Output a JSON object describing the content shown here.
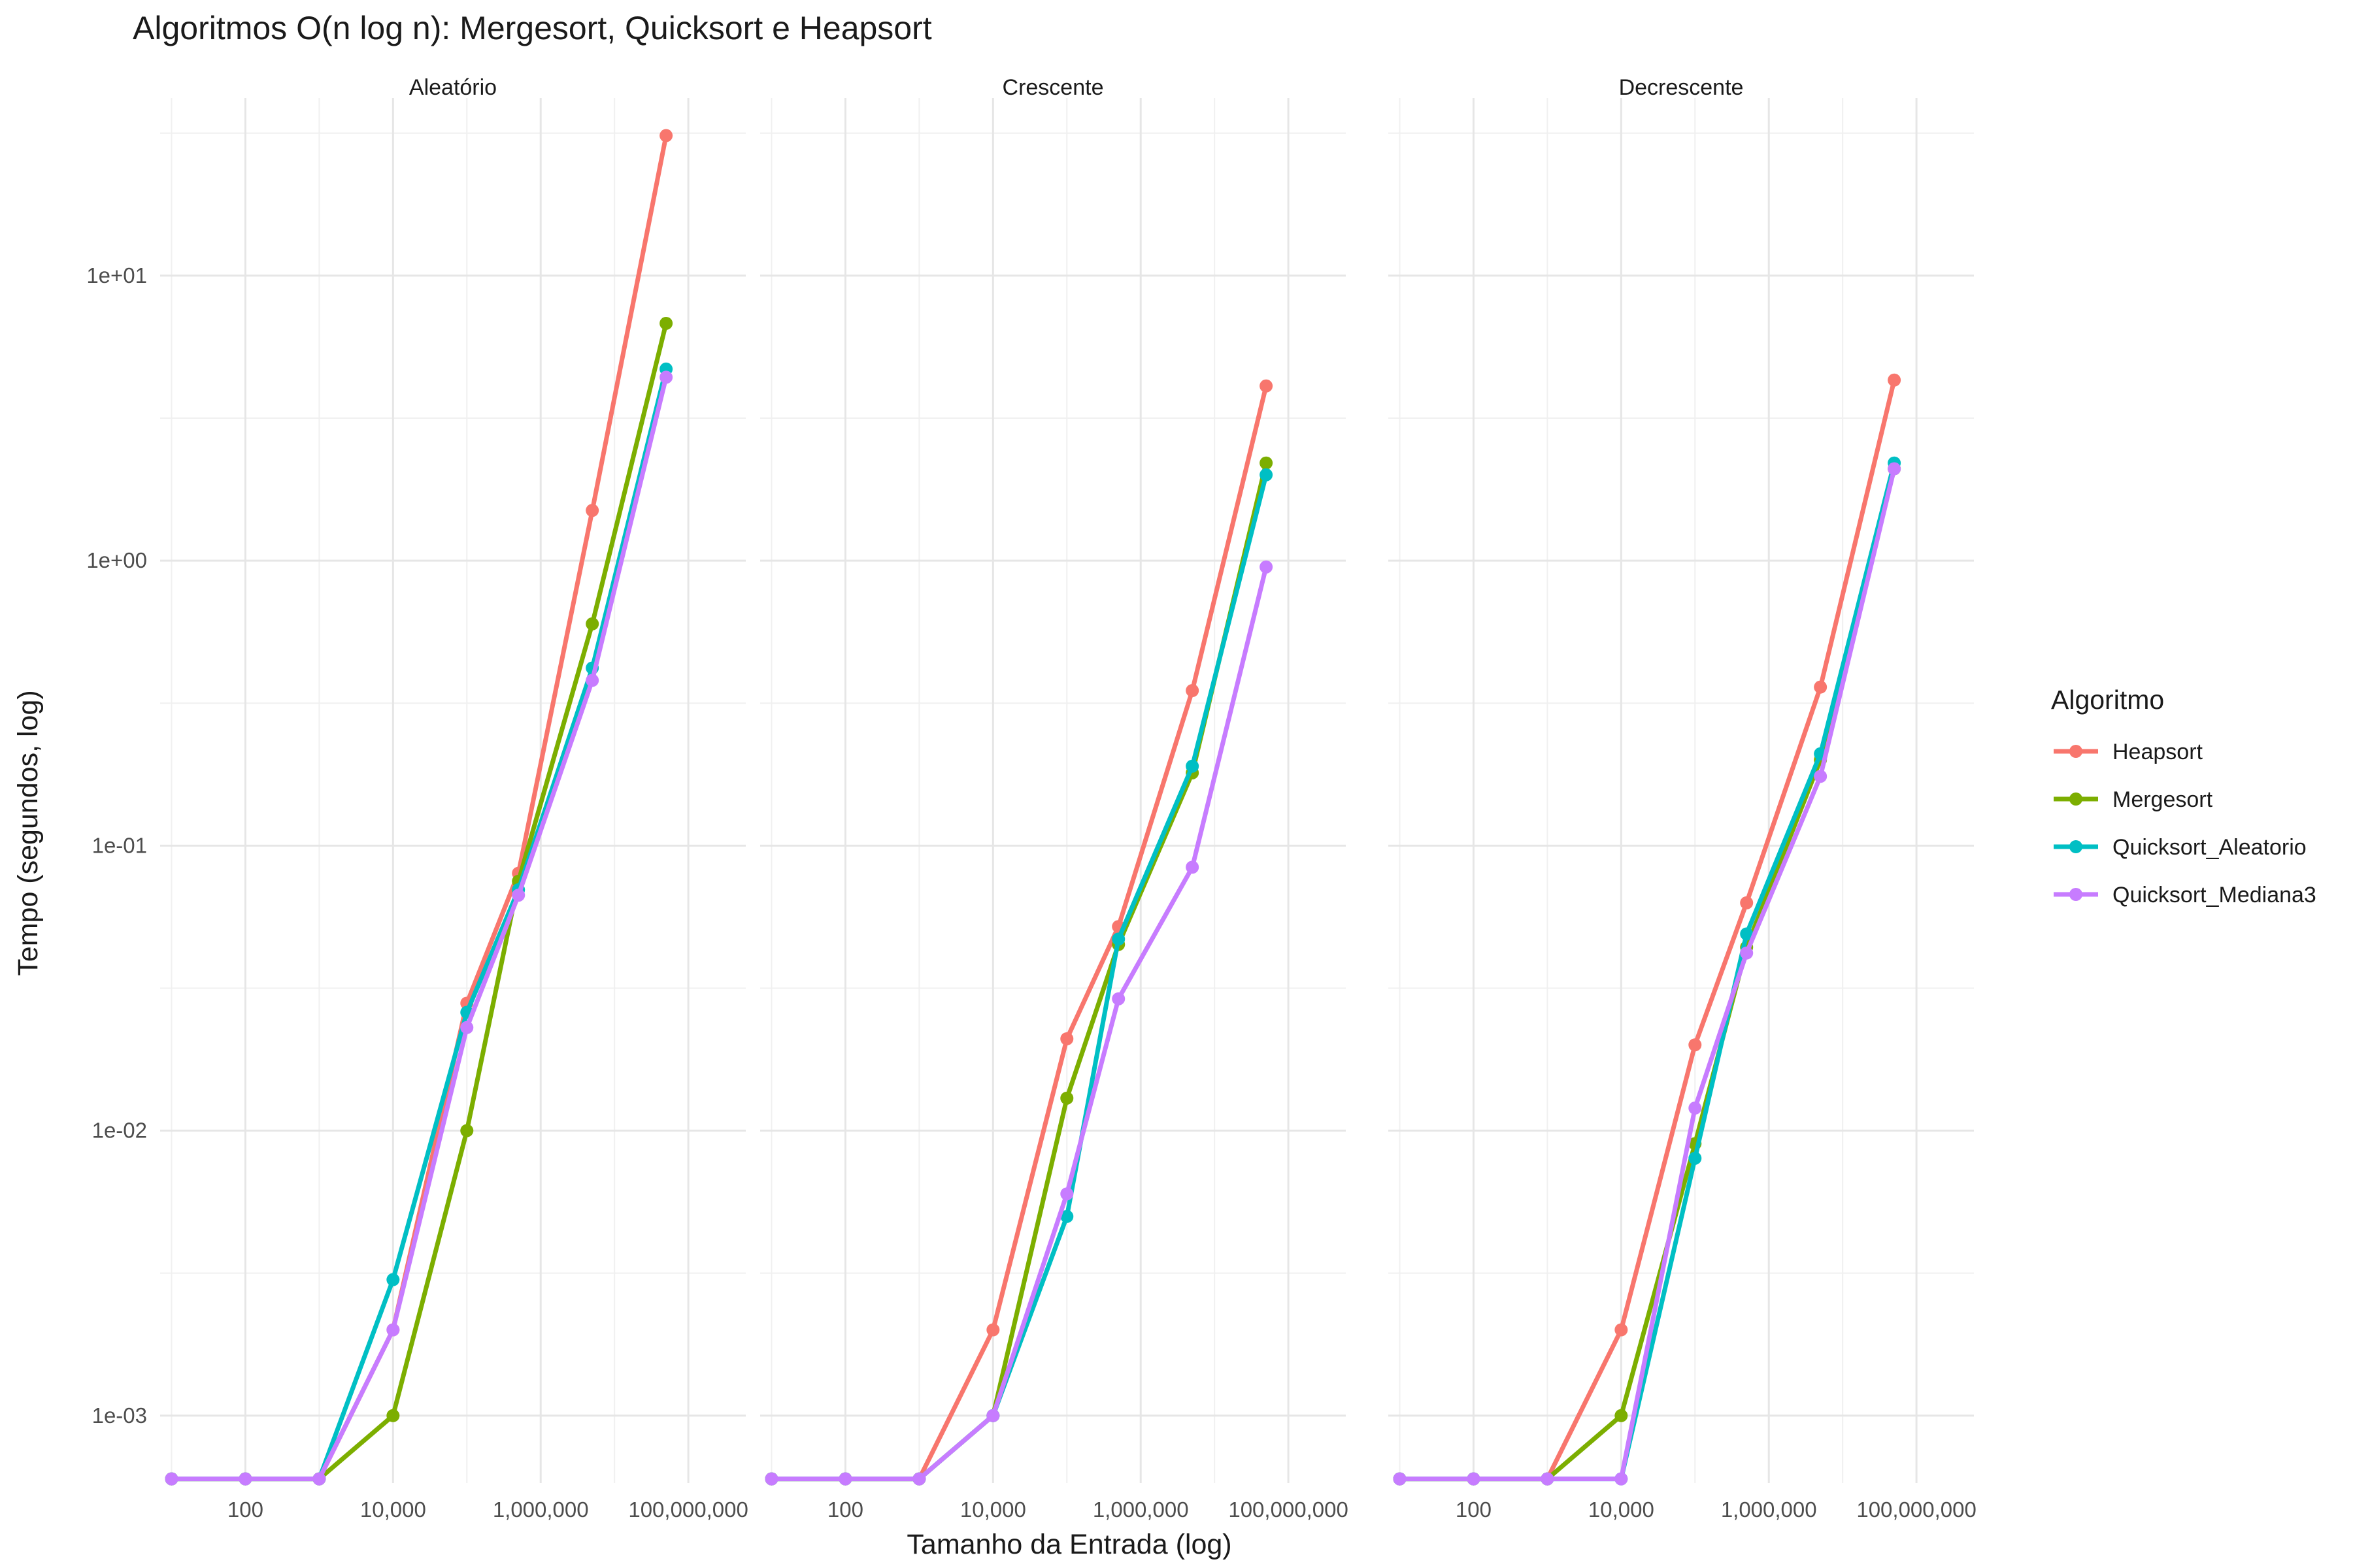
{
  "chart_data": {
    "type": "line",
    "title": "Algoritmos O(n log n): Mergesort, Quicksort e Heapsort",
    "xlabel": "Tamanho da Entrada (log)",
    "ylabel": "Tempo (segundos, log)",
    "x_scale": "log10",
    "y_scale": "log10",
    "x_ticks": [
      100,
      10000,
      1000000,
      100000000
    ],
    "x_tick_labels": [
      "100",
      "10,000",
      "1,000,000",
      "100,000,000"
    ],
    "y_ticks": [
      0.001,
      0.01,
      0.1,
      1,
      10
    ],
    "y_tick_labels": [
      "1e-03",
      "1e-02",
      "1e-01",
      "1e+00",
      "1e+01"
    ],
    "xlim": [
      7,
      600000000
    ],
    "ylim": [
      0.00058,
      42
    ],
    "grid": true,
    "legend_title": "Algoritmo",
    "legend_position": "right",
    "series_colors": {
      "Heapsort": "#F8766D",
      "Mergesort": "#7CAE00",
      "Quicksort_Aleatorio": "#00BFC4",
      "Quicksort_Mediana3": "#C77CFF"
    },
    "x": [
      10,
      100,
      1000,
      10000,
      100000,
      500000,
      5000000,
      50000000
    ],
    "panels": [
      {
        "title": "Aleatório",
        "series": [
          {
            "name": "Heapsort",
            "values": [
              0.0006,
              0.0006,
              0.0006,
              0.002,
              0.028,
              0.08,
              1.5,
              31
            ]
          },
          {
            "name": "Mergesort",
            "values": [
              0.0006,
              0.0006,
              0.0006,
              0.001,
              0.01,
              0.075,
              0.6,
              6.8
            ]
          },
          {
            "name": "Quicksort_Aleatorio",
            "values": [
              0.0006,
              0.0006,
              0.0006,
              0.003,
              0.026,
              0.07,
              0.42,
              4.7
            ]
          },
          {
            "name": "Quicksort_Mediana3",
            "values": [
              0.0006,
              0.0006,
              0.0006,
              0.002,
              0.023,
              0.067,
              0.38,
              4.4
            ]
          }
        ]
      },
      {
        "title": "Crescente",
        "series": [
          {
            "name": "Heapsort",
            "values": [
              0.0006,
              0.0006,
              0.0006,
              0.002,
              0.021,
              0.052,
              0.35,
              4.1
            ]
          },
          {
            "name": "Mergesort",
            "values": [
              0.0006,
              0.0006,
              0.0006,
              0.001,
              0.013,
              0.045,
              0.18,
              2.2
            ]
          },
          {
            "name": "Quicksort_Aleatorio",
            "values": [
              0.0006,
              0.0006,
              0.0006,
              0.001,
              0.005,
              0.047,
              0.19,
              2.0
            ]
          },
          {
            "name": "Quicksort_Mediana3",
            "values": [
              0.0006,
              0.0006,
              0.0006,
              0.001,
              0.006,
              0.029,
              0.084,
              0.95
            ]
          }
        ]
      },
      {
        "title": "Decrescente",
        "series": [
          {
            "name": "Heapsort",
            "values": [
              0.0006,
              0.0006,
              0.0006,
              0.002,
              0.02,
              0.063,
              0.36,
              4.3
            ]
          },
          {
            "name": "Mergesort",
            "values": [
              0.0006,
              0.0006,
              0.0006,
              0.001,
              0.009,
              0.044,
              0.2,
              2.1
            ]
          },
          {
            "name": "Quicksort_Aleatorio",
            "values": [
              0.0006,
              0.0006,
              0.0006,
              0.0006,
              0.008,
              0.049,
              0.21,
              2.2
            ]
          },
          {
            "name": "Quicksort_Mediana3",
            "values": [
              0.0006,
              0.0006,
              0.0006,
              0.0006,
              0.012,
              0.042,
              0.175,
              2.1
            ]
          }
        ]
      }
    ]
  }
}
